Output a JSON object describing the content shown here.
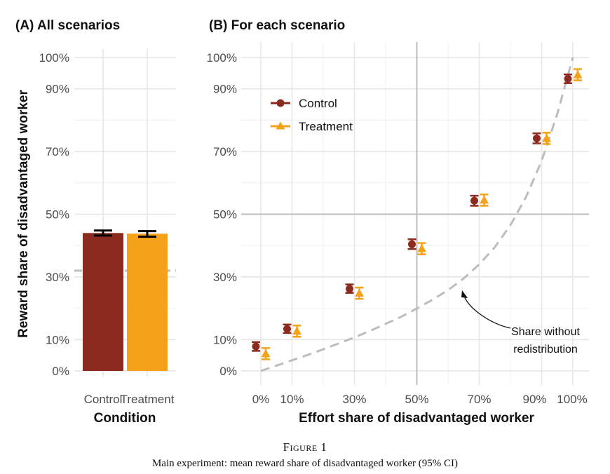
{
  "figure": {
    "label": "Figure 1",
    "caption": "Main experiment: mean reward share of disadvantaged worker (95% CI)"
  },
  "shared": {
    "ylabel": "Reward share of disadvantaged worker",
    "yticks": [
      "0%",
      "10%",
      "30%",
      "50%",
      "70%",
      "90%",
      "100%"
    ]
  },
  "colors": {
    "control": "#8B2A1E",
    "treatment": "#F5A21B",
    "grid": "#e6e6e6",
    "reference": "#bdbdbd",
    "axis_text": "#4d4d4d"
  },
  "chart_data": [
    {
      "panel": "A",
      "type": "bar",
      "title": "(A) All scenarios",
      "xlabel": "Condition",
      "ylabel": "Reward share of disadvantaged worker",
      "categories": [
        "Control",
        "Treatment"
      ],
      "values": [
        0.44,
        0.438
      ],
      "ci_low": [
        0.432,
        0.428
      ],
      "ci_high": [
        0.448,
        0.446
      ],
      "reference_line": 0.32,
      "ylim": [
        0,
        1.02
      ],
      "y_ticks": [
        0,
        0.1,
        0.3,
        0.5,
        0.7,
        0.9,
        1.0
      ]
    },
    {
      "panel": "B",
      "type": "scatter",
      "title": "(B) For each scenario",
      "xlabel": "Effort share of disadvantaged worker",
      "x_tick_labels": [
        "0%",
        "10%",
        "30%",
        "50%",
        "70%",
        "90%",
        "100%"
      ],
      "x_ticks": [
        0,
        0.1,
        0.3,
        0.5,
        0.7,
        0.9,
        1.0
      ],
      "xlim": [
        -0.06,
        1.06
      ],
      "ylim": [
        0,
        1.02
      ],
      "legend_position": "top-left",
      "series": [
        {
          "name": "Control",
          "x": [
            0,
            0.1,
            0.3,
            0.5,
            0.7,
            0.9,
            1.0
          ],
          "y": [
            0.078,
            0.134,
            0.262,
            0.404,
            0.543,
            0.742,
            0.932
          ],
          "ci_low": [
            0.064,
            0.121,
            0.249,
            0.389,
            0.527,
            0.726,
            0.918
          ],
          "ci_high": [
            0.092,
            0.148,
            0.276,
            0.42,
            0.559,
            0.758,
            0.946
          ]
        },
        {
          "name": "Treatment",
          "x": [
            0,
            0.1,
            0.3,
            0.5,
            0.7,
            0.9,
            1.0
          ],
          "y": [
            0.055,
            0.127,
            0.248,
            0.39,
            0.545,
            0.742,
            0.945
          ],
          "ci_low": [
            0.037,
            0.109,
            0.23,
            0.372,
            0.527,
            0.724,
            0.927
          ],
          "ci_high": [
            0.073,
            0.145,
            0.266,
            0.408,
            0.563,
            0.76,
            0.963
          ]
        }
      ],
      "reference_curve": {
        "label": "Share without redistribution",
        "label_lines": [
          "Share without",
          "redistribution"
        ],
        "x": [
          0,
          0.05,
          0.1,
          0.15,
          0.2,
          0.25,
          0.3,
          0.35,
          0.4,
          0.45,
          0.5,
          0.55,
          0.6,
          0.65,
          0.7,
          0.75,
          0.8,
          0.85,
          0.9,
          0.95,
          1.0
        ],
        "y": [
          0.0,
          0.017,
          0.034,
          0.051,
          0.069,
          0.088,
          0.107,
          0.128,
          0.15,
          0.173,
          0.199,
          0.227,
          0.258,
          0.295,
          0.34,
          0.395,
          0.465,
          0.555,
          0.67,
          0.82,
          1.0
        ]
      },
      "vline": 0.5,
      "hline": 0.5
    }
  ]
}
